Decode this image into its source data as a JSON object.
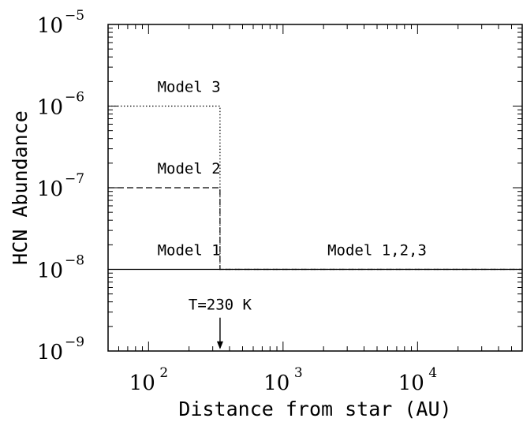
{
  "chart_data": {
    "type": "line",
    "xlabel": "Distance from star (AU)",
    "ylabel": "HCN Abundance",
    "xscale": "log",
    "yscale": "log",
    "xlim": [
      50,
      60000
    ],
    "ylim": [
      1e-09,
      1e-05
    ],
    "x_ticks": [
      {
        "value": 100,
        "base": "10",
        "exp": "2"
      },
      {
        "value": 1000,
        "base": "10",
        "exp": "3"
      },
      {
        "value": 10000,
        "base": "10",
        "exp": "4"
      }
    ],
    "y_ticks": [
      {
        "value": 1e-09,
        "base": "10",
        "exp": "−9"
      },
      {
        "value": 1e-08,
        "base": "10",
        "exp": "−8"
      },
      {
        "value": 1e-07,
        "base": "10",
        "exp": "−7"
      },
      {
        "value": 1e-06,
        "base": "10",
        "exp": "−6"
      },
      {
        "value": 1e-05,
        "base": "10",
        "exp": "−5"
      }
    ],
    "series": [
      {
        "name": "Model 1",
        "style": "solid",
        "x": [
          50,
          340,
          340,
          60000
        ],
        "y": [
          1e-08,
          1e-08,
          1e-08,
          1e-08
        ]
      },
      {
        "name": "Model 2",
        "style": "dashed",
        "x": [
          50,
          340,
          340,
          60000
        ],
        "y": [
          1e-07,
          1e-07,
          1e-08,
          1e-08
        ]
      },
      {
        "name": "Model 3",
        "style": "dotted",
        "x": [
          50,
          340,
          340,
          60000
        ],
        "y": [
          1e-06,
          1e-06,
          1e-08,
          1e-08
        ]
      }
    ],
    "annotations": [
      {
        "text": "Model 3",
        "x": 200,
        "y": 1.5e-06
      },
      {
        "text": "Model 2",
        "x": 200,
        "y": 1.5e-07
      },
      {
        "text": "Model 1",
        "x": 200,
        "y": 1.5e-08
      },
      {
        "text": "Model 1,2,3",
        "x": 5000,
        "y": 1.5e-08
      },
      {
        "text": "T=230 K",
        "x": 340,
        "y": 3.2e-09,
        "arrow_to_y": 1.05e-09
      }
    ],
    "grid": false,
    "legend": "none"
  }
}
